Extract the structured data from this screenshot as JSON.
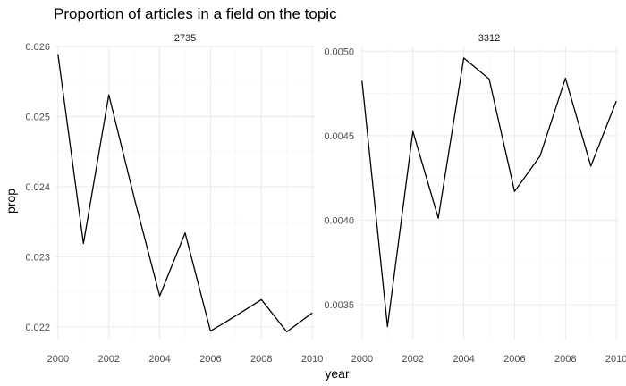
{
  "chart_data": {
    "type": "line",
    "title": "Proportion of articles in a field on the topic",
    "xlabel": "year",
    "ylabel": "prop",
    "grid": true,
    "facets": [
      {
        "strip": "2735",
        "x": [
          2000,
          2001,
          2002,
          2003,
          2004,
          2005,
          2006,
          2007,
          2008,
          2009,
          2010
        ],
        "y": [
          0.02589,
          0.02319,
          0.02531,
          0.02384,
          0.02244,
          0.02334,
          0.02194,
          0.02216,
          0.02239,
          0.02193,
          0.0222
        ],
        "xlim": [
          1999.9,
          2010.1
        ],
        "ylim": [
          0.02182,
          0.026
        ],
        "xticks": [
          2000,
          2002,
          2004,
          2006,
          2008,
          2010
        ],
        "xtick_labels": [
          "2000",
          "2002",
          "2004",
          "2006",
          "2008",
          "2010"
        ],
        "yticks": [
          0.022,
          0.023,
          0.024,
          0.025,
          0.026
        ],
        "ytick_labels": [
          "0.022",
          "0.023",
          "0.024",
          "0.025",
          "0.026"
        ]
      },
      {
        "strip": "3312",
        "x": [
          2000,
          2001,
          2002,
          2003,
          2004,
          2005,
          2006,
          2007,
          2008,
          2009,
          2010
        ],
        "y": [
          0.004825,
          0.00337,
          0.004525,
          0.004012,
          0.00496,
          0.004835,
          0.00417,
          0.00438,
          0.00484,
          0.00432,
          0.004705
        ],
        "xlim": [
          1999.9,
          2010.1
        ],
        "ylim": [
          0.003294,
          0.005028
        ],
        "xticks": [
          2000,
          2002,
          2004,
          2006,
          2008,
          2010
        ],
        "xtick_labels": [
          "2000",
          "2002",
          "2004",
          "2006",
          "2008",
          "2010"
        ],
        "yticks": [
          0.0035,
          0.004,
          0.0045,
          0.005
        ],
        "ytick_labels": [
          "0.0035",
          "0.0040",
          "0.0045",
          "0.0050"
        ]
      }
    ]
  }
}
